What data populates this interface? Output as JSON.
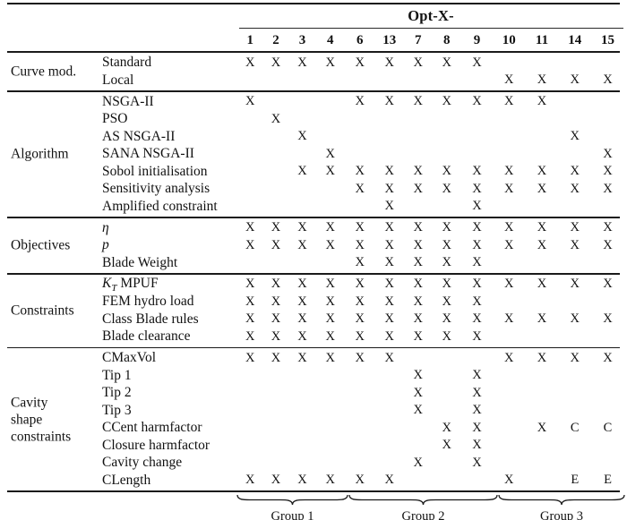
{
  "table": {
    "header": {
      "span_label": "Opt-X-",
      "columns": [
        "1",
        "2",
        "3",
        "4",
        "6",
        "13",
        "7",
        "8",
        "9",
        "10",
        "11",
        "14",
        "15"
      ]
    },
    "sections": [
      {
        "label": "Curve mod.",
        "rows": [
          {
            "name": [
              {
                "t": "Standard"
              }
            ],
            "cells": [
              "X",
              "X",
              "X",
              "X",
              "X",
              "X",
              "X",
              "X",
              "X",
              "",
              "",
              "",
              ""
            ]
          },
          {
            "name": [
              {
                "t": "Local"
              }
            ],
            "cells": [
              "",
              "",
              "",
              "",
              "",
              "",
              "",
              "",
              "",
              "X",
              "X",
              "X",
              "X"
            ]
          }
        ]
      },
      {
        "label": "Algorithm",
        "rows": [
          {
            "name": [
              {
                "t": "NSGA-II"
              }
            ],
            "cells": [
              "X",
              "",
              "",
              "",
              "X",
              "X",
              "X",
              "X",
              "X",
              "X",
              "X",
              "",
              ""
            ]
          },
          {
            "name": [
              {
                "t": "PSO"
              }
            ],
            "cells": [
              "",
              "X",
              "",
              "",
              "",
              "",
              "",
              "",
              "",
              "",
              "",
              "",
              ""
            ]
          },
          {
            "name": [
              {
                "t": "AS NSGA-II"
              }
            ],
            "cells": [
              "",
              "",
              "X",
              "",
              "",
              "",
              "",
              "",
              "",
              "",
              "",
              "X",
              ""
            ]
          },
          {
            "name": [
              {
                "t": "SANA NSGA-II"
              }
            ],
            "cells": [
              "",
              "",
              "",
              "X",
              "",
              "",
              "",
              "",
              "",
              "",
              "",
              "",
              "X"
            ]
          },
          {
            "name": [
              {
                "t": "Sobol initialisation"
              }
            ],
            "cells": [
              "",
              "",
              "X",
              "X",
              "X",
              "X",
              "X",
              "X",
              "X",
              "X",
              "X",
              "X",
              "X"
            ]
          },
          {
            "name": [
              {
                "t": "Sensitivity analysis"
              }
            ],
            "cells": [
              "",
              "",
              "",
              "",
              "X",
              "X",
              "X",
              "X",
              "X",
              "X",
              "X",
              "X",
              "X"
            ]
          },
          {
            "name": [
              {
                "t": "Amplified constraint"
              }
            ],
            "cells": [
              "",
              "",
              "",
              "",
              "",
              "X",
              "",
              "",
              "X",
              "",
              "",
              "",
              ""
            ]
          }
        ]
      },
      {
        "label": "Objectives",
        "rows": [
          {
            "name": [
              {
                "t": "η",
                "it": 1
              }
            ],
            "cells": [
              "X",
              "X",
              "X",
              "X",
              "X",
              "X",
              "X",
              "X",
              "X",
              "X",
              "X",
              "X",
              "X"
            ]
          },
          {
            "name": [
              {
                "t": "p",
                "it": 1
              }
            ],
            "cells": [
              "X",
              "X",
              "X",
              "X",
              "X",
              "X",
              "X",
              "X",
              "X",
              "X",
              "X",
              "X",
              "X"
            ]
          },
          {
            "name": [
              {
                "t": "Blade Weight"
              }
            ],
            "cells": [
              "",
              "",
              "",
              "",
              "X",
              "X",
              "X",
              "X",
              "X",
              "",
              "",
              "",
              ""
            ]
          }
        ]
      },
      {
        "label": "Constraints",
        "rows": [
          {
            "name": [
              {
                "t": "K",
                "it": 1
              },
              {
                "t": "T",
                "sub": 1
              },
              {
                "t": " MPUF"
              }
            ],
            "cells": [
              "X",
              "X",
              "X",
              "X",
              "X",
              "X",
              "X",
              "X",
              "X",
              "X",
              "X",
              "X",
              "X"
            ]
          },
          {
            "name": [
              {
                "t": "FEM hydro load"
              }
            ],
            "cells": [
              "X",
              "X",
              "X",
              "X",
              "X",
              "X",
              "X",
              "X",
              "X",
              "",
              "",
              "",
              ""
            ]
          },
          {
            "name": [
              {
                "t": "Class Blade rules"
              }
            ],
            "cells": [
              "X",
              "X",
              "X",
              "X",
              "X",
              "X",
              "X",
              "X",
              "X",
              "X",
              "X",
              "X",
              "X"
            ]
          },
          {
            "name": [
              {
                "t": "Blade clearance"
              }
            ],
            "cells": [
              "X",
              "X",
              "X",
              "X",
              "X",
              "X",
              "X",
              "X",
              "X",
              "",
              "",
              "",
              ""
            ]
          }
        ]
      },
      {
        "label": "Cavity\nshape\nconstraints",
        "rows": [
          {
            "name": [
              {
                "t": "CMaxVol"
              }
            ],
            "cells": [
              "X",
              "X",
              "X",
              "X",
              "X",
              "X",
              "",
              "",
              "",
              "X",
              "X",
              "X",
              "X"
            ]
          },
          {
            "name": [
              {
                "t": "Tip 1"
              }
            ],
            "cells": [
              "",
              "",
              "",
              "",
              "",
              "",
              "X",
              "",
              "X",
              "",
              "",
              "",
              ""
            ]
          },
          {
            "name": [
              {
                "t": "Tip 2"
              }
            ],
            "cells": [
              "",
              "",
              "",
              "",
              "",
              "",
              "X",
              "",
              "X",
              "",
              "",
              "",
              ""
            ]
          },
          {
            "name": [
              {
                "t": "Tip 3"
              }
            ],
            "cells": [
              "",
              "",
              "",
              "",
              "",
              "",
              "X",
              "",
              "X",
              "",
              "",
              "",
              ""
            ]
          },
          {
            "name": [
              {
                "t": "CCent harmfactor"
              }
            ],
            "cells": [
              "",
              "",
              "",
              "",
              "",
              "",
              "",
              "X",
              "X",
              "",
              "X",
              "C",
              "C"
            ]
          },
          {
            "name": [
              {
                "t": "Closure harmfactor"
              }
            ],
            "cells": [
              "",
              "",
              "",
              "",
              "",
              "",
              "",
              "X",
              "X",
              "",
              "",
              "",
              ""
            ]
          },
          {
            "name": [
              {
                "t": "Cavity change"
              }
            ],
            "cells": [
              "",
              "",
              "",
              "",
              "",
              "",
              "X",
              "",
              "X",
              "",
              "",
              "",
              ""
            ]
          },
          {
            "name": [
              {
                "t": "CLength"
              }
            ],
            "cells": [
              "X",
              "X",
              "X",
              "X",
              "X",
              "X",
              "",
              "",
              "",
              "X",
              "",
              "E",
              "E"
            ]
          }
        ]
      }
    ]
  },
  "groups": [
    {
      "label": "Group 1"
    },
    {
      "label": "Group 2"
    },
    {
      "label": "Group 3"
    }
  ]
}
